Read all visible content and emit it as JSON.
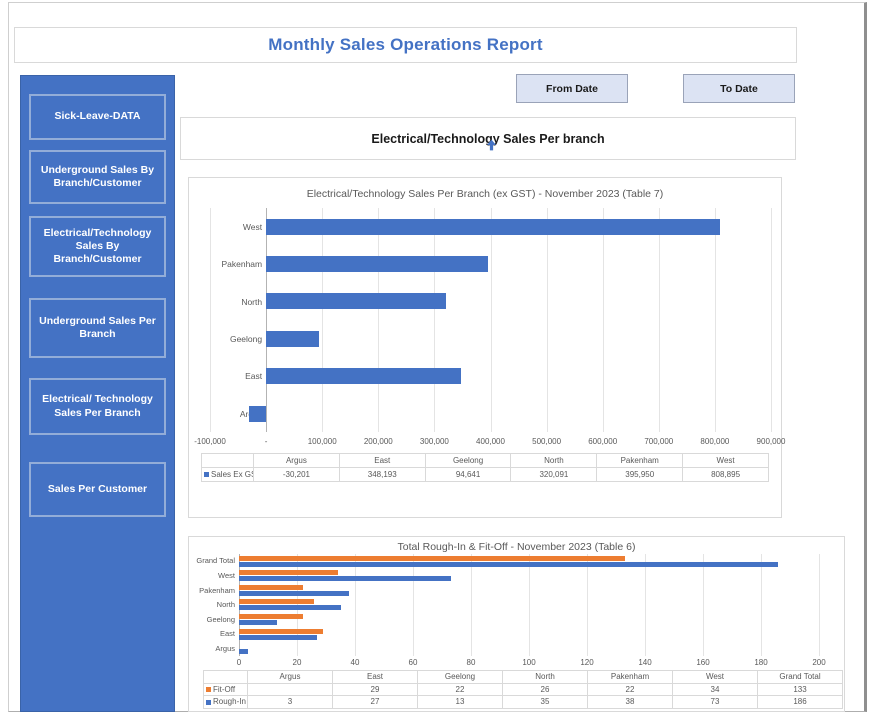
{
  "page": {
    "title": "Monthly Sales Operations Report"
  },
  "toolbar": {
    "from_date_label": "From Date",
    "to_date_label": "To Date"
  },
  "sidebar": {
    "background": "#4472C4",
    "items": [
      {
        "label": "Sick-Leave-DATA",
        "active": false
      },
      {
        "label": "Underground Sales By Branch/Customer",
        "active": false
      },
      {
        "label": "Electrical/Technology Sales By Branch/Customer",
        "active": false
      },
      {
        "label": "Underground Sales Per Branch",
        "active": false
      },
      {
        "label": "Electrical/ Technology Sales Per Branch",
        "active": true
      },
      {
        "label": "Sales Per Customer",
        "active": false
      }
    ]
  },
  "section_header": {
    "title": "Electrical/Technology Sales Per branch"
  },
  "icons": {
    "pointer": "up-arrow-cursor"
  },
  "colors": {
    "accent_blue": "#4472C4",
    "accent_orange": "#ED7D31",
    "button_fill": "#DCE3F3",
    "chart_text": "#595959"
  },
  "chart_data": [
    {
      "type": "bar",
      "orientation": "horizontal",
      "title": "Electrical/Technology Sales Per Branch (ex GST) - November 2023 (Table 7)",
      "categories_top_to_bottom": [
        "West",
        "Pakenham",
        "North",
        "Geelong",
        "East",
        "Argus"
      ],
      "series": [
        {
          "name": "Sales Ex GST",
          "color": "#4472C4",
          "values_by_category": {
            "West": 808895,
            "Pakenham": 395950,
            "North": 320091,
            "Geelong": 94641,
            "East": 348193,
            "Argus": -30201
          }
        }
      ],
      "xlim": [
        -100000,
        900000
      ],
      "grid": true,
      "legend_position": "table-left",
      "x_tick_labels": [
        "-100,000",
        "-",
        "100,000",
        "200,000",
        "300,000",
        "400,000",
        "500,000",
        "600,000",
        "700,000",
        "800,000",
        "900,000"
      ],
      "table": {
        "columns": [
          "Argus",
          "East",
          "Geelong",
          "North",
          "Pakenham",
          "West"
        ],
        "rows": [
          {
            "name": "Sales Ex GST",
            "marker_color": "#4472C4",
            "values": [
              "-30,201",
              "348,193",
              "94,641",
              "320,091",
              "395,950",
              "808,895"
            ]
          }
        ]
      }
    },
    {
      "type": "bar",
      "orientation": "horizontal",
      "title": "Total Rough-In & Fit-Off - November 2023 (Table 6)",
      "categories_top_to_bottom": [
        "Grand Total",
        "West",
        "Pakenham",
        "North",
        "Geelong",
        "East",
        "Argus"
      ],
      "series": [
        {
          "name": "Fit-Off",
          "color": "#ED7D31",
          "values_by_category": {
            "Grand Total": 133,
            "West": 34,
            "Pakenham": 22,
            "North": 26,
            "Geelong": 22,
            "East": 29,
            "Argus": null
          }
        },
        {
          "name": "Rough-In",
          "color": "#4472C4",
          "values_by_category": {
            "Grand Total": 186,
            "West": 73,
            "Pakenham": 38,
            "North": 35,
            "Geelong": 13,
            "East": 27,
            "Argus": 3
          }
        }
      ],
      "xlim": [
        0,
        200
      ],
      "grid": true,
      "legend_position": "table-left",
      "x_tick_labels": [
        "0",
        "20",
        "40",
        "60",
        "80",
        "100",
        "120",
        "140",
        "160",
        "180",
        "200"
      ],
      "table": {
        "columns": [
          "Argus",
          "East",
          "Geelong",
          "North",
          "Pakenham",
          "West",
          "Grand Total"
        ],
        "rows": [
          {
            "name": "Fit-Off",
            "marker_color": "#ED7D31",
            "values": [
              "",
              "29",
              "22",
              "26",
              "22",
              "34",
              "133"
            ]
          },
          {
            "name": "Rough-In",
            "marker_color": "#4472C4",
            "values": [
              "3",
              "27",
              "13",
              "35",
              "38",
              "73",
              "186"
            ]
          }
        ]
      }
    }
  ]
}
